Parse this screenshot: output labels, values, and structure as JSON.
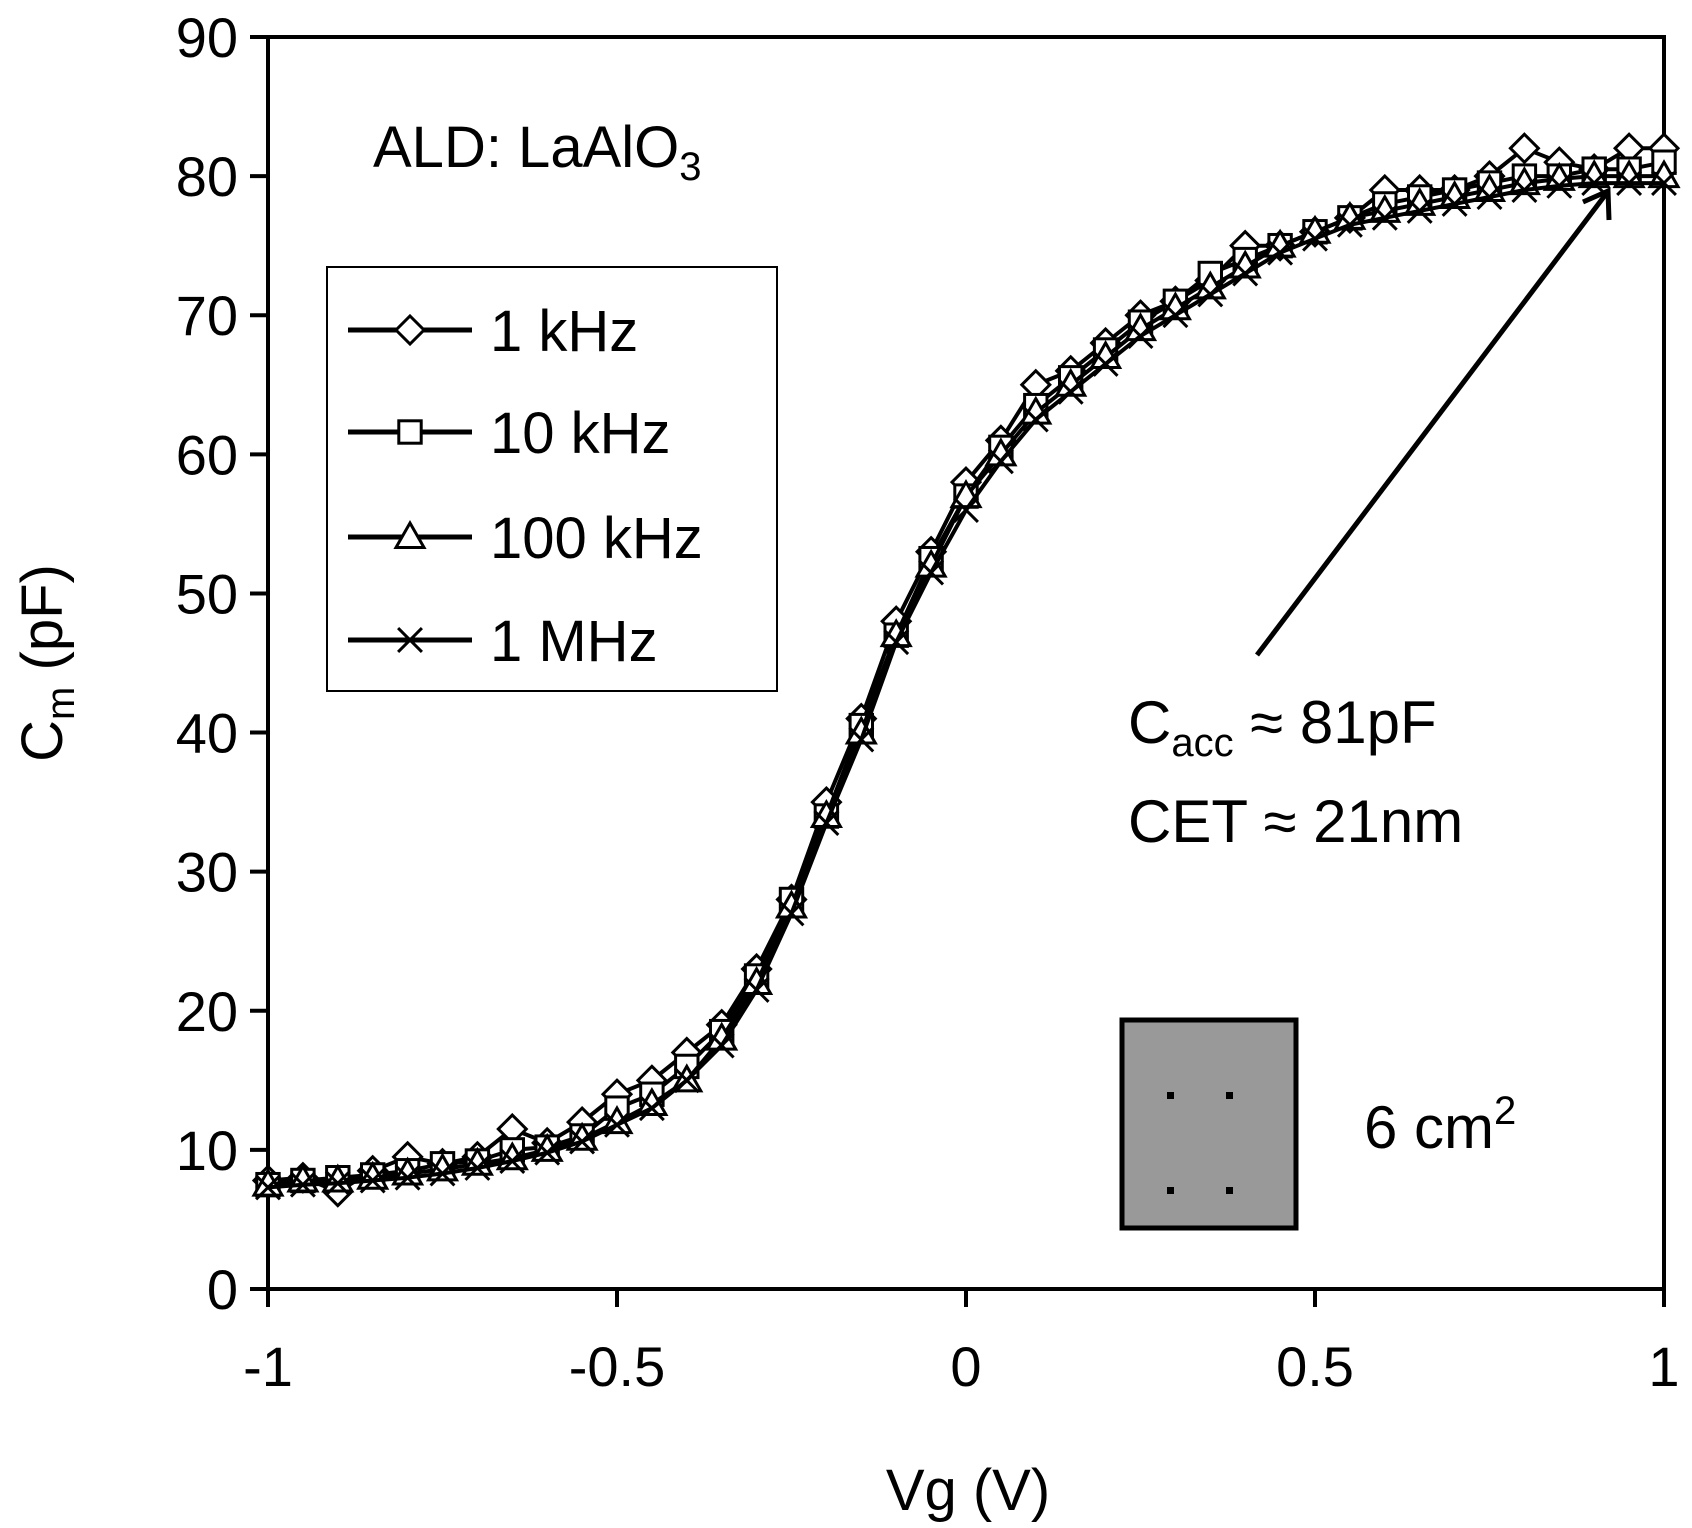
{
  "chart_data": {
    "type": "line",
    "title": "",
    "xlabel": "Vg (V)",
    "ylabel_main": "C",
    "ylabel_sub": "m",
    "ylabel_rest": " (pF)",
    "xlim": [
      -1,
      1
    ],
    "ylim": [
      0,
      90
    ],
    "xticks": [
      -1,
      -0.5,
      0,
      0.5,
      1
    ],
    "xtick_labels": [
      "-1",
      "-0.5",
      "0",
      "0.5",
      "1"
    ],
    "yticks": [
      0,
      10,
      20,
      30,
      40,
      50,
      60,
      70,
      80,
      90
    ],
    "ytick_labels": [
      "0",
      "10",
      "20",
      "30",
      "40",
      "50",
      "60",
      "70",
      "80",
      "90"
    ],
    "x": [
      -1.0,
      -0.95,
      -0.9,
      -0.85,
      -0.8,
      -0.75,
      -0.7,
      -0.65,
      -0.6,
      -0.55,
      -0.5,
      -0.45,
      -0.4,
      -0.35,
      -0.3,
      -0.25,
      -0.2,
      -0.15,
      -0.1,
      -0.05,
      0.0,
      0.05,
      0.1,
      0.15,
      0.2,
      0.25,
      0.3,
      0.35,
      0.4,
      0.45,
      0.5,
      0.55,
      0.6,
      0.65,
      0.7,
      0.75,
      0.8,
      0.85,
      0.9,
      0.95,
      1.0
    ],
    "series": [
      {
        "name": "1 kHz",
        "marker": "diamond",
        "values": [
          7.8,
          8.0,
          7.0,
          8.5,
          9.5,
          9.0,
          9.5,
          11.5,
          10.5,
          12.0,
          14.0,
          15.0,
          17.0,
          19.0,
          23.0,
          28.0,
          35.0,
          41.0,
          48.0,
          53.0,
          58.0,
          61.0,
          65.0,
          66.0,
          68.0,
          70.0,
          71.0,
          72.5,
          75.0,
          75.0,
          76.0,
          77.0,
          79.0,
          79.0,
          79.0,
          80.0,
          82.0,
          81.0,
          80.5,
          82.0,
          82.0
        ]
      },
      {
        "name": "10 kHz",
        "marker": "square",
        "values": [
          7.5,
          7.8,
          8.0,
          8.2,
          8.5,
          9.0,
          9.2,
          10.0,
          10.2,
          11.0,
          13.0,
          14.0,
          16.0,
          18.5,
          22.5,
          28.0,
          34.0,
          40.5,
          47.0,
          52.5,
          57.0,
          60.5,
          63.5,
          65.5,
          67.5,
          69.5,
          71.0,
          73.0,
          74.0,
          75.0,
          76.0,
          77.0,
          78.0,
          78.5,
          79.0,
          79.5,
          80.0,
          80.0,
          80.5,
          80.5,
          81.0
        ]
      },
      {
        "name": "100 kHz",
        "marker": "triangle",
        "values": [
          7.5,
          7.8,
          7.8,
          8.0,
          8.3,
          8.6,
          9.0,
          9.4,
          10.0,
          10.8,
          12.0,
          13.3,
          15.0,
          18.0,
          22.0,
          27.5,
          34.0,
          40.0,
          47.0,
          52.0,
          57.0,
          60.0,
          63.0,
          65.0,
          67.0,
          69.0,
          70.5,
          72.0,
          73.5,
          75.0,
          76.0,
          77.0,
          77.5,
          78.0,
          78.5,
          79.0,
          79.5,
          79.8,
          80.0,
          80.0,
          80.0
        ]
      },
      {
        "name": "1 MHz",
        "marker": "x",
        "values": [
          7.3,
          7.5,
          7.6,
          7.8,
          8.0,
          8.3,
          8.7,
          9.2,
          9.8,
          10.6,
          11.8,
          13.0,
          15.0,
          17.5,
          21.5,
          27.0,
          33.5,
          39.5,
          46.5,
          51.5,
          56.0,
          59.5,
          62.5,
          64.5,
          66.5,
          68.5,
          70.0,
          71.5,
          73.0,
          74.5,
          75.5,
          76.5,
          77.0,
          77.5,
          78.0,
          78.5,
          79.0,
          79.3,
          79.5,
          79.5,
          79.5
        ]
      }
    ],
    "legend_position": "top-left"
  },
  "annotations": {
    "material_prefix": "ALD: LaAlO",
    "material_sub": "3",
    "cacc_main": "C",
    "cacc_sub": "acc",
    "cacc_rest": " ≈ 81pF",
    "cet": "CET ≈ 21nm",
    "area_value": "6 cm",
    "area_sup": "2"
  },
  "colors": {
    "line": "#000000",
    "marker_fill": "#ffffff",
    "inset_fill": "#999999",
    "background": "#ffffff"
  }
}
